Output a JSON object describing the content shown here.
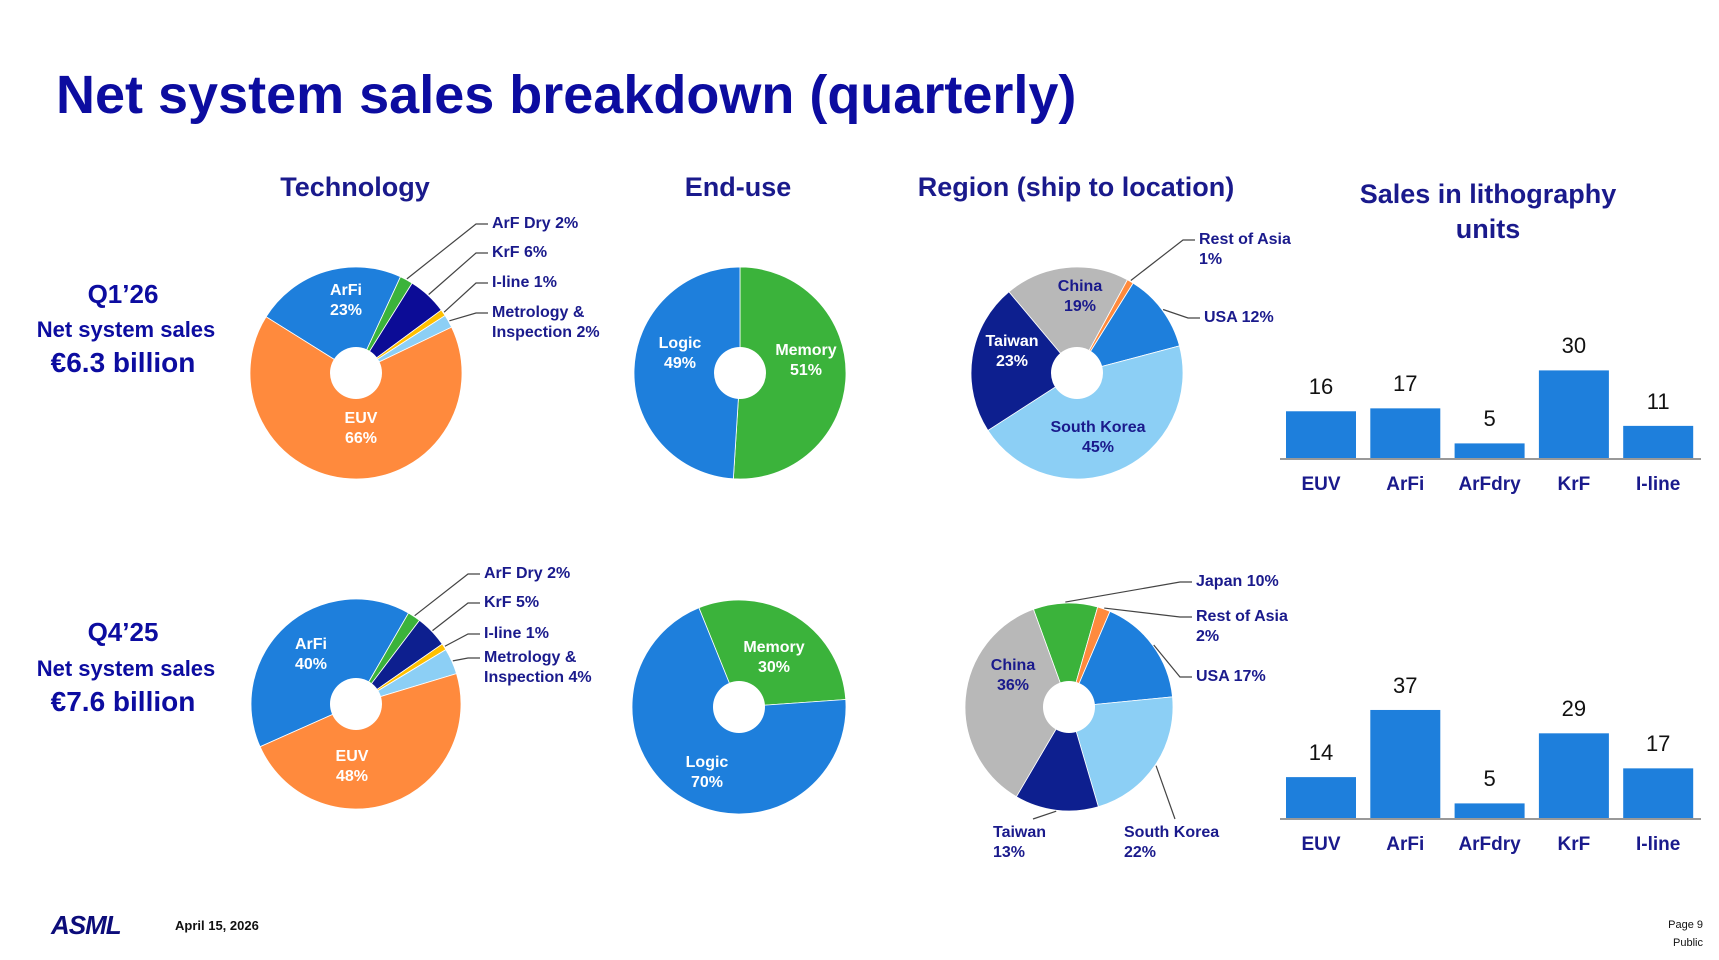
{
  "slide": {
    "title": "Net system sales breakdown (quarterly)",
    "columns": [
      "Technology",
      "End-use",
      "Region (ship to location)",
      "Sales in lithography units"
    ],
    "rows": [
      {
        "quarter": "Q1’26",
        "label": "Net system sales",
        "amount": "€6.3 billion"
      },
      {
        "quarter": "Q4’25",
        "label": "Net system sales",
        "amount": "€7.6 billion"
      }
    ],
    "footer": {
      "logo": "ASML",
      "date": "April 15, 2026",
      "page": "Page 9",
      "classification": "Public"
    }
  },
  "chart_data": [
    {
      "type": "donut",
      "categories": [
        "ArFi",
        "ArF Dry",
        "KrF",
        "I-line",
        "Metrology & Inspection",
        "EUV"
      ],
      "values": [
        23,
        2,
        6,
        1,
        2,
        66
      ],
      "value_labels": [
        "23%",
        "2%",
        "6%",
        "1%",
        "2%",
        "66%"
      ],
      "colors": [
        "#1e7fdc",
        "#3bb33b",
        "#0c0c96",
        "#ffc000",
        "#8ccff5",
        "#ff8a3d"
      ]
    },
    {
      "type": "donut",
      "categories": [
        "Memory",
        "Logic"
      ],
      "values": [
        51,
        49
      ],
      "value_labels": [
        "51%",
        "49%"
      ],
      "colors": [
        "#3bb33b",
        "#1e7fdc"
      ]
    },
    {
      "type": "donut",
      "categories": [
        "China",
        "Rest of Asia",
        "USA",
        "South Korea",
        "Taiwan"
      ],
      "values": [
        19,
        1,
        12,
        45,
        23
      ],
      "value_labels": [
        "19%",
        "1%",
        "12%",
        "45%",
        "23%"
      ],
      "colors": [
        "#b8b8b8",
        "#ff8a3d",
        "#1e7fdc",
        "#8ccff5",
        "#0d1f8f"
      ]
    },
    {
      "type": "bar",
      "categories": [
        "EUV",
        "ArFi",
        "ArFdry",
        "KrF",
        "I-line"
      ],
      "values": [
        16,
        17,
        5,
        30,
        11
      ],
      "color": "#1e7fdc"
    },
    {
      "type": "donut",
      "categories": [
        "ArFi",
        "ArF Dry",
        "KrF",
        "I-line",
        "Metrology & Inspection",
        "EUV"
      ],
      "values": [
        40,
        2,
        5,
        1,
        4,
        48
      ],
      "value_labels": [
        "40%",
        "2%",
        "5%",
        "1%",
        "4%",
        "48%"
      ],
      "colors": [
        "#1e7fdc",
        "#3bb33b",
        "#0d1f8f",
        "#ffc000",
        "#8ccff5",
        "#ff8a3d"
      ]
    },
    {
      "type": "donut",
      "categories": [
        "Memory",
        "Logic"
      ],
      "values": [
        30,
        70
      ],
      "value_labels": [
        "30%",
        "70%"
      ],
      "colors": [
        "#3bb33b",
        "#1e7fdc"
      ]
    },
    {
      "type": "donut",
      "categories": [
        "Japan",
        "Rest of Asia",
        "USA",
        "South Korea",
        "Taiwan",
        "China"
      ],
      "values": [
        10,
        2,
        17,
        22,
        13,
        36
      ],
      "value_labels": [
        "10%",
        "2%",
        "17%",
        "22%",
        "13%",
        "36%"
      ],
      "colors": [
        "#3bb33b",
        "#ff8a3d",
        "#1e7fdc",
        "#8ccff5",
        "#0d1f8f",
        "#b8b8b8"
      ]
    },
    {
      "type": "bar",
      "categories": [
        "EUV",
        "ArFi",
        "ArFdry",
        "KrF",
        "I-line"
      ],
      "values": [
        14,
        37,
        5,
        29,
        17
      ],
      "color": "#1e7fdc"
    }
  ]
}
